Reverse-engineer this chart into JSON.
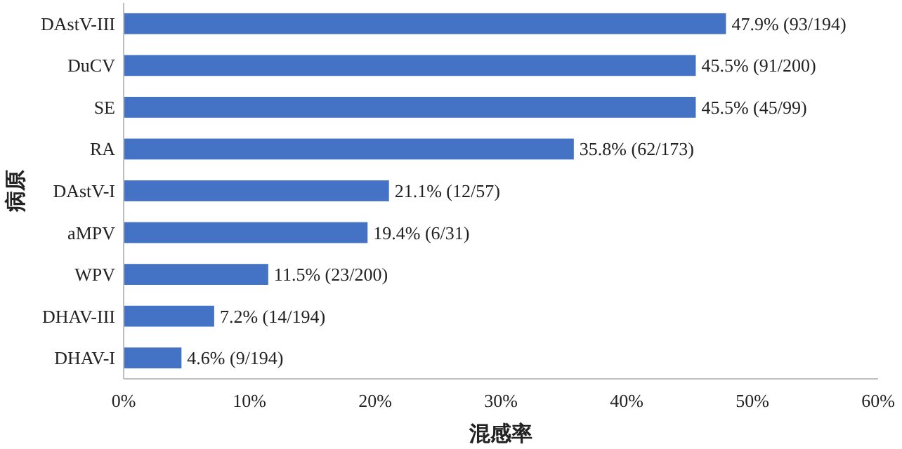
{
  "chart_data": {
    "type": "bar",
    "orientation": "horizontal",
    "xlabel": "混感率",
    "ylabel": "病原",
    "categories": [
      "DAstV-III",
      "DuCV",
      "SE",
      "RA",
      "DAstV-I",
      "aMPV",
      "WPV",
      "DHAV-III",
      "DHAV-I"
    ],
    "values": [
      47.9,
      45.5,
      45.5,
      35.8,
      21.1,
      19.4,
      11.5,
      7.2,
      4.6
    ],
    "value_labels": [
      "47.9% (93/194)",
      "45.5% (91/200)",
      "45.5% (45/99)",
      "35.8% (62/173)",
      "21.1% (12/57)",
      "19.4% (6/31)",
      "11.5% (23/200)",
      "7.2% (14/194)",
      "4.6% (9/194)"
    ],
    "color": "#4472c4",
    "xlim": [
      0,
      60
    ],
    "xticks": [
      {
        "value": 0,
        "label": "0%"
      },
      {
        "value": 10,
        "label": "10%"
      },
      {
        "value": 20,
        "label": "20%"
      },
      {
        "value": 30,
        "label": "30%"
      },
      {
        "value": 40,
        "label": "40%"
      },
      {
        "value": 50,
        "label": "50%"
      },
      {
        "value": 60,
        "label": "60%"
      }
    ],
    "grid": false
  }
}
